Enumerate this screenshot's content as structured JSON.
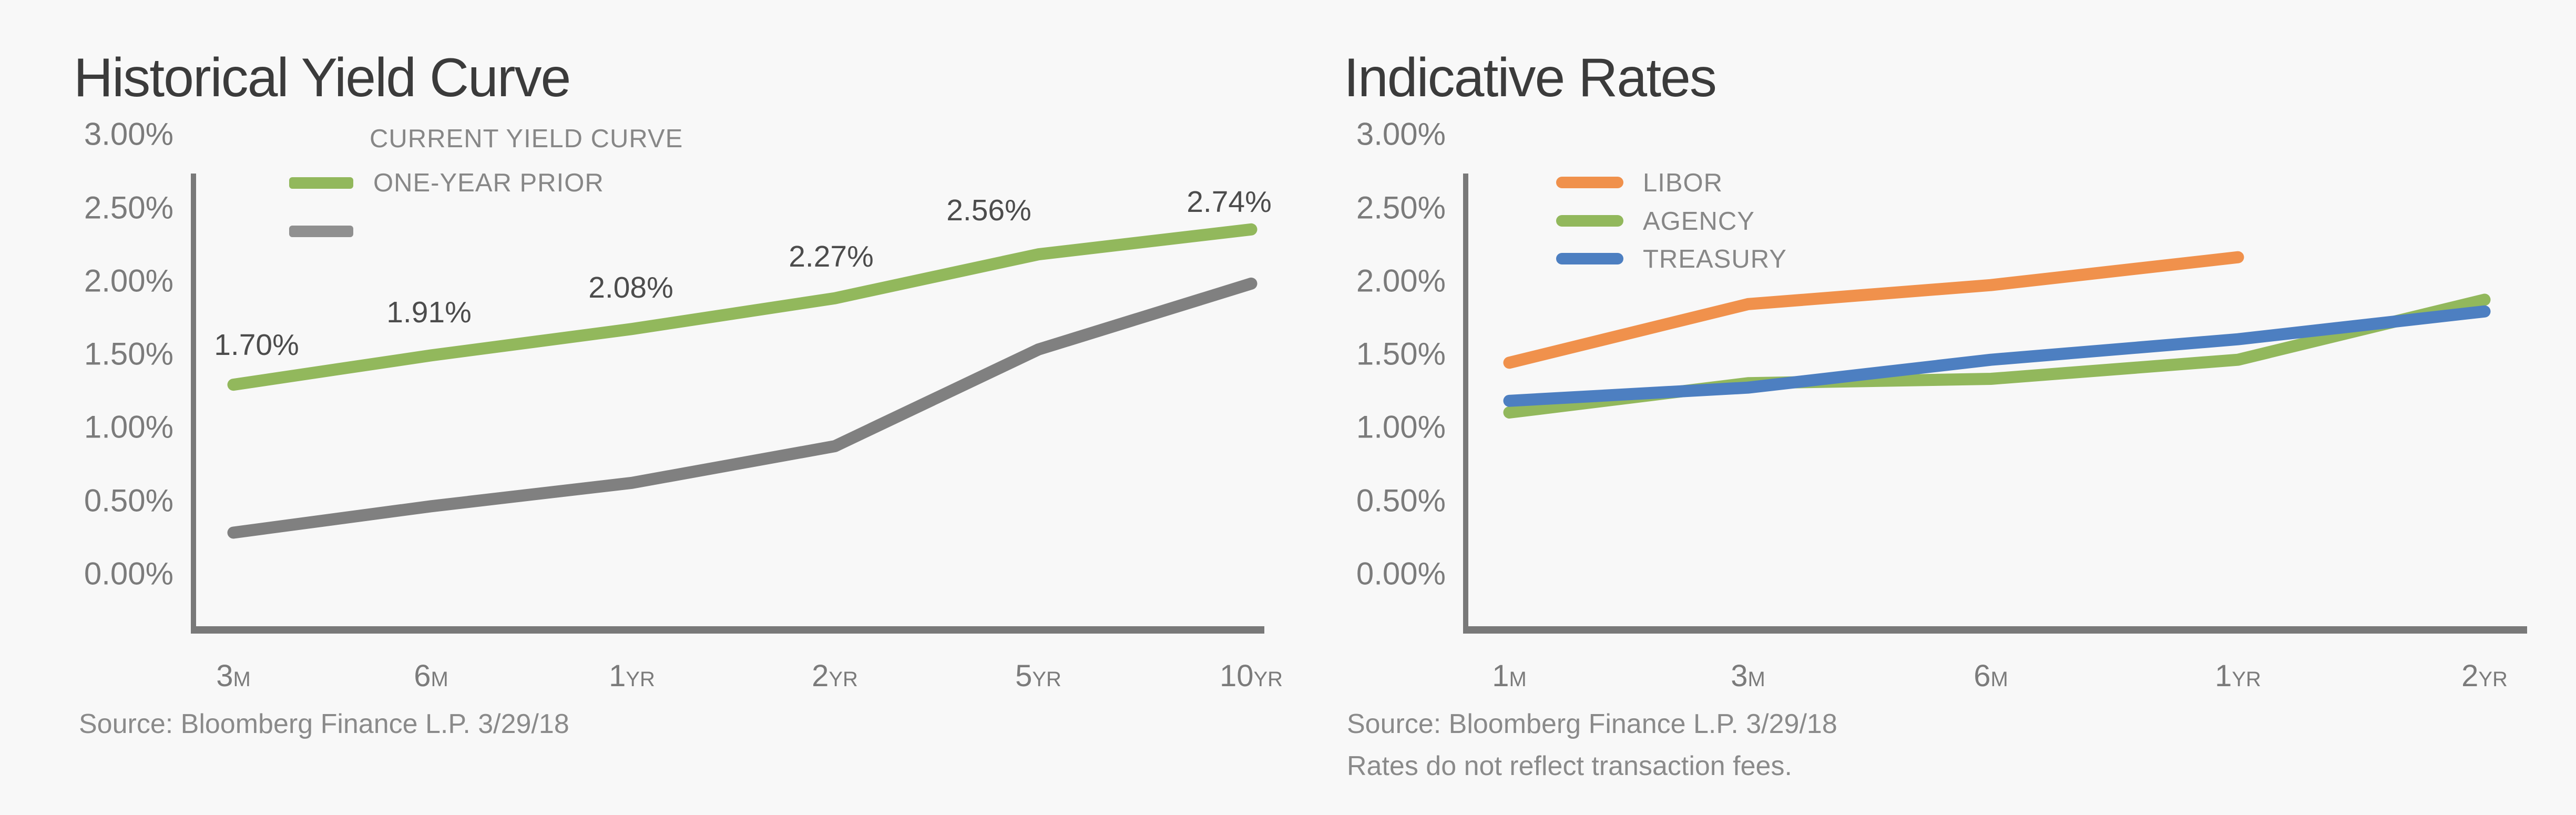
{
  "page": {
    "background": "#f8f8f8"
  },
  "colors": {
    "title_text": "#3b3b3b",
    "axis": "#797979",
    "tick_text": "#7b7b7b",
    "legend_text": "#878787",
    "source_text": "#8a8a8a",
    "data_label_text": "#4c4c4c",
    "current_yield_green": "#92b85c",
    "one_year_prior_gray": "#808080",
    "libor_orange": "#f0914c",
    "agency_green": "#92b85c",
    "treasury_blue": "#4d7fc1"
  },
  "chart_data": [
    {
      "type": "line",
      "title": "Historical Yield Curve",
      "categories": [
        "3M",
        "6M",
        "1YR",
        "2YR",
        "5YR",
        "10YR"
      ],
      "series": [
        {
          "name": "CURRENT YIELD CURVE",
          "color": "#92b85c",
          "values": [
            1.7,
            1.91,
            2.08,
            2.27,
            2.56,
            2.74
          ],
          "point_labels": [
            "1.70%",
            "1.91%",
            "2.08%",
            "2.27%",
            "2.56%",
            "2.74%"
          ],
          "drawn_y_pct": [
            1.29,
            1.49,
            1.67,
            1.88,
            2.18,
            2.35
          ]
        },
        {
          "name": "ONE-YEAR PRIOR",
          "color": "#808080",
          "values": [
            0.28,
            0.46,
            0.62,
            0.87,
            1.53,
            1.98
          ]
        }
      ],
      "legend_rows": [
        {
          "label": "CURRENT YIELD CURVE",
          "swatch": null
        },
        {
          "label": "ONE-YEAR PRIOR",
          "swatch": "#92b85c"
        },
        {
          "label": "",
          "swatch": "#909090"
        }
      ],
      "y_ticks": [
        "3.00%",
        "2.50%",
        "2.00%",
        "1.50%",
        "1.00%",
        "0.50%",
        "0.00%"
      ],
      "ylim": [
        0,
        3
      ],
      "grid": false,
      "legend_position": "top-left-inside",
      "source": "Source: Bloomberg Finance L.P. 3/29/18"
    },
    {
      "type": "line",
      "title": "Indicative Rates",
      "categories": [
        "1M",
        "3M",
        "6M",
        "1YR",
        "2YR"
      ],
      "series": [
        {
          "name": "LIBOR",
          "color": "#f0914c",
          "values": [
            1.44,
            1.84,
            1.97,
            2.16,
            null
          ]
        },
        {
          "name": "AGENCY",
          "color": "#92b85c",
          "values": [
            1.1,
            1.3,
            1.33,
            1.46,
            1.87
          ]
        },
        {
          "name": "TREASURY",
          "color": "#4d7fc1",
          "values": [
            1.18,
            1.27,
            1.46,
            1.6,
            1.79
          ]
        }
      ],
      "legend_rows": [
        {
          "label": "LIBOR",
          "swatch": "#f0914c"
        },
        {
          "label": "AGENCY",
          "swatch": "#92b85c"
        },
        {
          "label": "TREASURY",
          "swatch": "#4d7fc1"
        }
      ],
      "y_ticks": [
        "3.00%",
        "2.50%",
        "2.00%",
        "1.50%",
        "1.00%",
        "0.50%",
        "0.00%"
      ],
      "ylim": [
        0,
        3
      ],
      "grid": false,
      "legend_position": "top-left-inside",
      "source": "Source: Bloomberg Finance L.P. 3/29/18",
      "footnote": "Rates do not reflect transaction fees."
    }
  ]
}
